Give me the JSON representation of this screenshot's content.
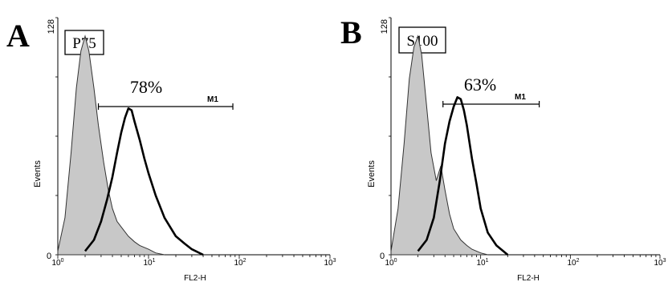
{
  "chart_data": [
    {
      "type": "histogram",
      "panel_letter": "A",
      "marker": "P75",
      "percent": "78%",
      "gate_label": "M1",
      "xlabel": "FL2-H",
      "ylabel": "Events",
      "xscale": "log",
      "xlim": [
        1,
        1000
      ],
      "ylim": [
        0,
        128
      ],
      "xtick_labels": [
        {
          "value": 1,
          "base": "10",
          "exp": "0"
        },
        {
          "value": 10,
          "base": "10",
          "exp": "1"
        },
        {
          "value": 100,
          "base": "10",
          "exp": "2"
        },
        {
          "value": 1000,
          "base": "10",
          "exp": "3"
        }
      ],
      "ytick_labels": [
        {
          "value": 0,
          "label": "0"
        },
        {
          "value": 128,
          "label": "128"
        }
      ],
      "gate_range": [
        2.8,
        85
      ],
      "series": [
        {
          "role": "control",
          "fill": "#c8c8c8",
          "x": [
            1,
            1.2,
            1.4,
            1.6,
            1.8,
            2.0,
            2.2,
            2.5,
            2.8,
            3.2,
            3.6,
            4.0,
            4.5,
            5.0,
            6.0,
            7.0,
            8.0,
            10,
            12,
            15
          ],
          "y": [
            2,
            20,
            55,
            90,
            110,
            118,
            110,
            90,
            70,
            50,
            35,
            25,
            18,
            15,
            10,
            7,
            5,
            3,
            1,
            0
          ]
        },
        {
          "role": "stained",
          "fill": "none",
          "x": [
            2,
            2.5,
            3,
            3.5,
            4,
            4.5,
            5,
            5.5,
            6,
            6.5,
            7,
            8,
            9,
            10,
            12,
            15,
            20,
            25,
            30,
            40
          ],
          "y": [
            2,
            8,
            18,
            30,
            42,
            55,
            66,
            74,
            79,
            78,
            72,
            62,
            52,
            44,
            32,
            20,
            10,
            6,
            3,
            0
          ]
        }
      ]
    },
    {
      "type": "histogram",
      "panel_letter": "B",
      "marker": "S100",
      "percent": "63%",
      "gate_label": "M1",
      "xlabel": "FL2-H",
      "ylabel": "Events",
      "xscale": "log",
      "xlim": [
        1,
        1000
      ],
      "ylim": [
        0,
        128
      ],
      "xtick_labels": [
        {
          "value": 1,
          "base": "10",
          "exp": "0"
        },
        {
          "value": 10,
          "base": "10",
          "exp": "1"
        },
        {
          "value": 100,
          "base": "10",
          "exp": "2"
        },
        {
          "value": 1000,
          "base": "10",
          "exp": "3"
        }
      ],
      "ytick_labels": [
        {
          "value": 0,
          "label": "0"
        },
        {
          "value": 128,
          "label": "128"
        }
      ],
      "gate_range": [
        3.8,
        45
      ],
      "series": [
        {
          "role": "control",
          "fill": "#c8c8c8",
          "x": [
            1,
            1.2,
            1.4,
            1.6,
            1.8,
            2.0,
            2.2,
            2.5,
            2.8,
            3.2,
            3.6,
            4.0,
            4.5,
            5.0,
            6.0,
            7.0,
            8.0,
            10,
            12
          ],
          "y": [
            2,
            25,
            60,
            95,
            112,
            118,
            108,
            80,
            55,
            40,
            48,
            35,
            22,
            14,
            8,
            5,
            3,
            1,
            0
          ]
        },
        {
          "role": "stained",
          "fill": "none",
          "x": [
            2,
            2.5,
            3,
            3.5,
            4,
            4.5,
            5,
            5.5,
            6,
            6.5,
            7,
            8,
            9,
            10,
            12,
            15,
            20
          ],
          "y": [
            2,
            8,
            20,
            40,
            60,
            72,
            80,
            85,
            84,
            78,
            70,
            52,
            38,
            25,
            12,
            5,
            0
          ]
        }
      ]
    }
  ]
}
